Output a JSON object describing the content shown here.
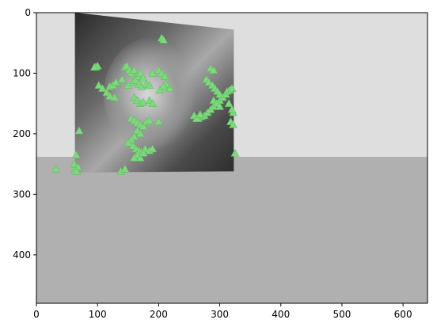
{
  "chart_data": {
    "type": "scatter",
    "title": "",
    "xlabel": "",
    "ylabel": "",
    "xlim": [
      0,
      640
    ],
    "ylim": [
      480,
      0
    ],
    "y_inverted": true,
    "grid": false,
    "x_ticks": [
      0,
      100,
      200,
      300,
      400,
      500,
      600
    ],
    "y_ticks": [
      0,
      100,
      200,
      300,
      400
    ],
    "image": {
      "description": "warped grayscale portrait photograph on gray background",
      "background_upper_color": "#dedede",
      "background_lower_color": "#b0b0b0",
      "background_split_y": 238,
      "photo_quad": [
        [
          63,
          0
        ],
        [
          323,
          28
        ],
        [
          323,
          262
        ],
        [
          63,
          264
        ]
      ]
    },
    "marker_color": "#7ed87e",
    "marker_shape": "triangle-up",
    "series": [
      {
        "x": [
          205,
          208,
          100,
          97,
          102,
          108,
          120,
          125,
          130,
          145,
          148,
          152,
          140,
          155,
          160,
          165,
          170,
          175,
          150,
          158,
          162,
          168,
          172,
          180,
          185,
          190,
          200,
          205,
          210,
          215,
          218,
          212,
          208,
          202,
          160,
          165,
          170,
          175,
          185,
          190,
          155,
          160,
          165,
          170,
          175,
          180,
          185,
          165,
          170,
          160,
          155,
          150,
          158,
          163,
          168,
          172,
          178,
          165,
          170,
          175,
          185,
          190,
          160,
          200,
          265,
          270,
          275,
          280,
          285,
          290,
          295,
          300,
          305,
          310,
          312,
          316,
          320,
          322,
          290,
          295,
          300,
          278,
          282,
          288,
          292,
          296,
          300,
          258,
          262,
          268,
          285,
          290,
          315,
          320,
          318,
          322,
          325,
          70,
          65,
          62,
          68,
          63,
          66,
          32,
          138,
          145,
          95,
          115,
          120,
          128
        ],
        "y": [
          42,
          45,
          88,
          90,
          120,
          125,
          122,
          120,
          115,
          90,
          88,
          95,
          110,
          100,
          95,
          105,
          100,
          108,
          120,
          115,
          112,
          118,
          122,
          118,
          120,
          100,
          95,
          100,
          105,
          120,
          125,
          118,
          122,
          128,
          140,
          145,
          150,
          148,
          145,
          150,
          175,
          178,
          182,
          185,
          188,
          180,
          178,
          195,
          200,
          205,
          210,
          215,
          220,
          225,
          228,
          230,
          225,
          235,
          240,
          232,
          228,
          225,
          240,
          180,
          175,
          172,
          170,
          165,
          160,
          155,
          150,
          145,
          140,
          135,
          130,
          128,
          125,
          165,
          145,
          150,
          155,
          110,
          115,
          120,
          125,
          130,
          135,
          170,
          175,
          168,
          92,
          95,
          150,
          160,
          180,
          185,
          232,
          195,
          235,
          250,
          255,
          260,
          262,
          258,
          262,
          258,
          90,
          132,
          138,
          140
        ]
      }
    ]
  }
}
